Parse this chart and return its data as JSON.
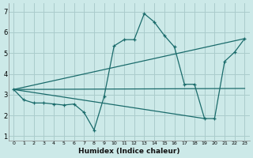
{
  "xlabel": "Humidex (Indice chaleur)",
  "xlim": [
    -0.5,
    23.5
  ],
  "ylim": [
    0.8,
    7.4
  ],
  "xticks": [
    0,
    1,
    2,
    3,
    4,
    5,
    6,
    7,
    8,
    9,
    10,
    11,
    12,
    13,
    14,
    15,
    16,
    17,
    18,
    19,
    20,
    21,
    22,
    23
  ],
  "yticks": [
    1,
    2,
    3,
    4,
    5,
    6,
    7
  ],
  "background_color": "#cce9e8",
  "grid_color": "#aacccc",
  "line_color": "#1a6b6b",
  "series": [
    {
      "x": [
        0,
        1,
        2,
        3,
        4,
        5,
        6,
        7,
        8,
        9,
        10,
        11,
        12,
        13,
        14,
        15,
        16,
        17,
        18,
        19,
        20,
        21,
        22,
        23
      ],
      "y": [
        3.25,
        2.75,
        2.6,
        2.6,
        2.55,
        2.5,
        2.55,
        2.15,
        1.3,
        2.9,
        5.35,
        5.65,
        5.65,
        6.9,
        6.5,
        5.85,
        5.3,
        3.5,
        3.5,
        1.85,
        1.85,
        4.6,
        5.05,
        5.7
      ]
    },
    {
      "x": [
        0,
        23
      ],
      "y": [
        3.25,
        5.7
      ]
    },
    {
      "x": [
        0,
        23
      ],
      "y": [
        3.25,
        3.3
      ]
    },
    {
      "x": [
        0,
        19
      ],
      "y": [
        3.25,
        1.85
      ]
    }
  ]
}
